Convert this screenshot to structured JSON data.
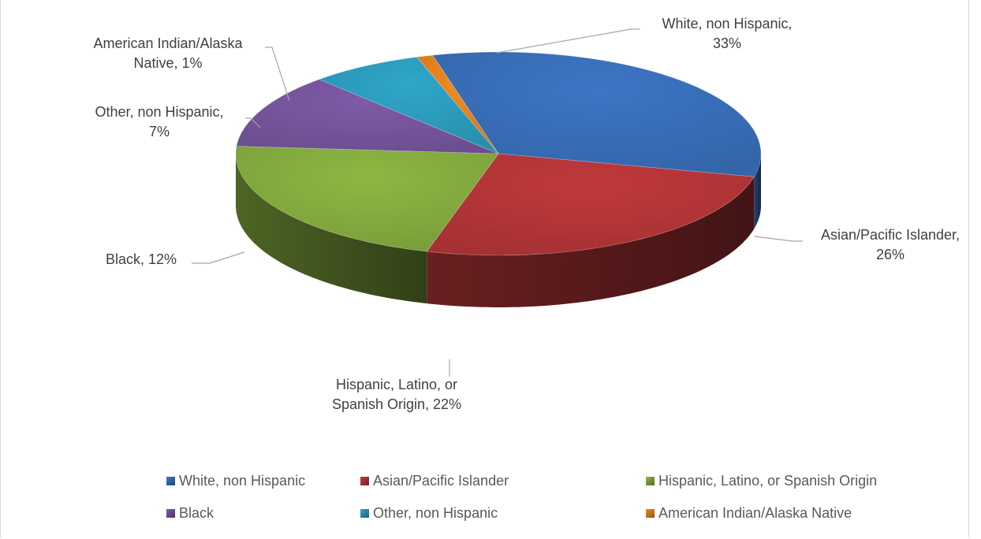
{
  "chart_data": {
    "type": "pie",
    "title": "",
    "series": [
      {
        "name": "White, non Hispanic",
        "value": 33,
        "label_line1": "White, non Hispanic,",
        "label_line2": "33%",
        "color": "#3c76c4"
      },
      {
        "name": "Asian/Pacific Islander",
        "value": 26,
        "label_line1": "Asian/Pacific Islander,",
        "label_line2": "26%",
        "color": "#c0393b"
      },
      {
        "name": "Hispanic, Latino, or Spanish Origin",
        "value": 22,
        "label_line1": "Hispanic, Latino, or",
        "label_line2": "Spanish Origin, 22%",
        "color": "#8db743"
      },
      {
        "name": "Black",
        "value": 12,
        "label_line1": "Black, 12%",
        "label_line2": "",
        "color": "#7d5ba6"
      },
      {
        "name": "Other, non Hispanic",
        "value": 7,
        "label_line1": "Other, non Hispanic,",
        "label_line2": "7%",
        "color": "#2fa6c9"
      },
      {
        "name": "American Indian/Alaska Native",
        "value": 1,
        "label_line1": "American Indian/Alaska",
        "label_line2": "Native, 1%",
        "color": "#f28a1f"
      }
    ],
    "legend": {
      "placement": "bottom",
      "items": [
        "White, non Hispanic",
        "Asian/Pacific Islander",
        "Hispanic, Latino, or Spanish Origin",
        "Black",
        "Other, non Hispanic",
        "American Indian/Alaska Native"
      ]
    }
  }
}
